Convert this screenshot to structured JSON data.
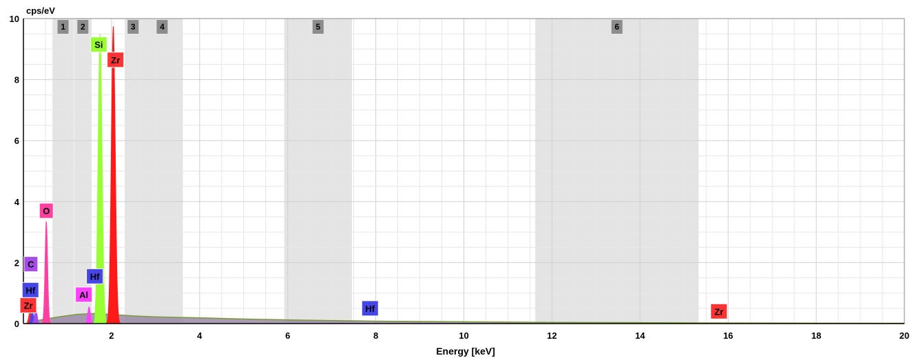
{
  "chart_data": {
    "type": "area",
    "title": "",
    "xlabel": "Energy [keV]",
    "ylabel": "cps/eV",
    "xlim": [
      0,
      20
    ],
    "ylim": [
      0,
      10
    ],
    "x_ticks": [
      2,
      4,
      6,
      8,
      10,
      12,
      14,
      16,
      18,
      20
    ],
    "y_ticks": [
      0,
      2,
      4,
      6,
      8,
      10
    ],
    "grid": true,
    "regions": [
      {
        "label": "1",
        "x": [
          0.66,
          1.14
        ]
      },
      {
        "label": "2",
        "x": [
          1.15,
          1.55
        ]
      },
      {
        "label": "3",
        "x": [
          2.3,
          2.68
        ]
      },
      {
        "label": "4",
        "x": [
          2.68,
          3.62
        ]
      },
      {
        "label": "5",
        "x": [
          5.92,
          7.46
        ]
      },
      {
        "label": "6",
        "x": [
          11.62,
          15.33
        ]
      }
    ],
    "peaks": [
      {
        "element": "Zr",
        "energy": 0.15,
        "height": 0.4,
        "color": "#ff2a2a"
      },
      {
        "element": "Hf",
        "energy": 0.2,
        "height": 0.4,
        "color": "#4545e8"
      },
      {
        "element": "C",
        "energy": 0.28,
        "height": 0.5,
        "color": "#a64ce8"
      },
      {
        "element": "O",
        "energy": 0.52,
        "height": 3.35,
        "color": "#ff40a0"
      },
      {
        "element": "Al",
        "energy": 1.49,
        "height": 0.55,
        "color": "#ff40ff"
      },
      {
        "element": "Hf",
        "energy": 1.65,
        "height": 0.5,
        "color": "#4545e8"
      },
      {
        "element": "Si",
        "energy": 1.74,
        "height": 9.5,
        "color": "#99ff33"
      },
      {
        "element": "Zr",
        "energy": 2.04,
        "height": 9.75,
        "color": "#ff1a1a"
      }
    ],
    "labels": [
      {
        "text": "Si",
        "energy": 1.71,
        "y": 9.15,
        "color": "#99ff33"
      },
      {
        "text": "Zr",
        "energy": 2.09,
        "y": 8.65,
        "color": "#ff3333"
      },
      {
        "text": "O",
        "energy": 0.52,
        "y": 3.7,
        "color": "#ff40a0"
      },
      {
        "text": "C",
        "energy": 0.17,
        "y": 1.95,
        "color": "#a64ce8"
      },
      {
        "text": "Hf",
        "energy": 1.62,
        "y": 1.55,
        "color": "#4545e8"
      },
      {
        "text": "Al",
        "energy": 1.37,
        "y": 0.95,
        "color": "#ff40ff"
      },
      {
        "text": "Hf",
        "energy": 0.16,
        "y": 1.1,
        "color": "#4545e8"
      },
      {
        "text": "Zr",
        "energy": 0.11,
        "y": 0.6,
        "color": "#ff3333"
      },
      {
        "text": "Hf",
        "energy": 7.87,
        "y": 0.5,
        "color": "#4545e8"
      },
      {
        "text": "Zr",
        "energy": 15.79,
        "y": 0.4,
        "color": "#ff3333"
      }
    ],
    "background": {
      "color": "#9b8aa8",
      "edge": "#7a9a3a",
      "points": [
        [
          0.15,
          0.05
        ],
        [
          0.5,
          0.15
        ],
        [
          0.8,
          0.22
        ],
        [
          1.2,
          0.3
        ],
        [
          1.6,
          0.33
        ],
        [
          2.0,
          0.3
        ],
        [
          2.5,
          0.25
        ],
        [
          3.0,
          0.22
        ],
        [
          4.0,
          0.19
        ],
        [
          5.0,
          0.15
        ],
        [
          6.0,
          0.12
        ],
        [
          7.0,
          0.1
        ],
        [
          8.0,
          0.08
        ],
        [
          10.0,
          0.06
        ],
        [
          12.0,
          0.04
        ],
        [
          14.0,
          0.03
        ],
        [
          16.0,
          0.02
        ],
        [
          18.0,
          0.015
        ],
        [
          20.0,
          0.01
        ]
      ]
    }
  }
}
